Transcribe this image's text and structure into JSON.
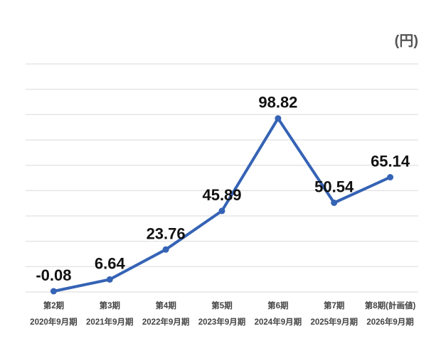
{
  "chart_data": {
    "type": "line",
    "unit": "(円)",
    "categories": [
      [
        "第2期",
        "2020年9月期"
      ],
      [
        "第3期",
        "2021年9月期"
      ],
      [
        "第4期",
        "2022年9月期"
      ],
      [
        "第5期",
        "2023年9月期"
      ],
      [
        "第6期",
        "2024年9月期"
      ],
      [
        "第7期",
        "2025年9月期"
      ],
      [
        "第8期(計画値)",
        "2026年9月期"
      ]
    ],
    "values": [
      -0.08,
      6.64,
      23.76,
      45.89,
      98.82,
      50.54,
      65.14
    ],
    "data_labels": [
      "-0.08",
      "6.64",
      "23.76",
      "45.89",
      "98.82",
      "50.54",
      "65.14"
    ],
    "ylim": [
      -0.5,
      130
    ],
    "grid": true,
    "line_color": "#3563b5",
    "grid_color": "#d9d9d9"
  }
}
